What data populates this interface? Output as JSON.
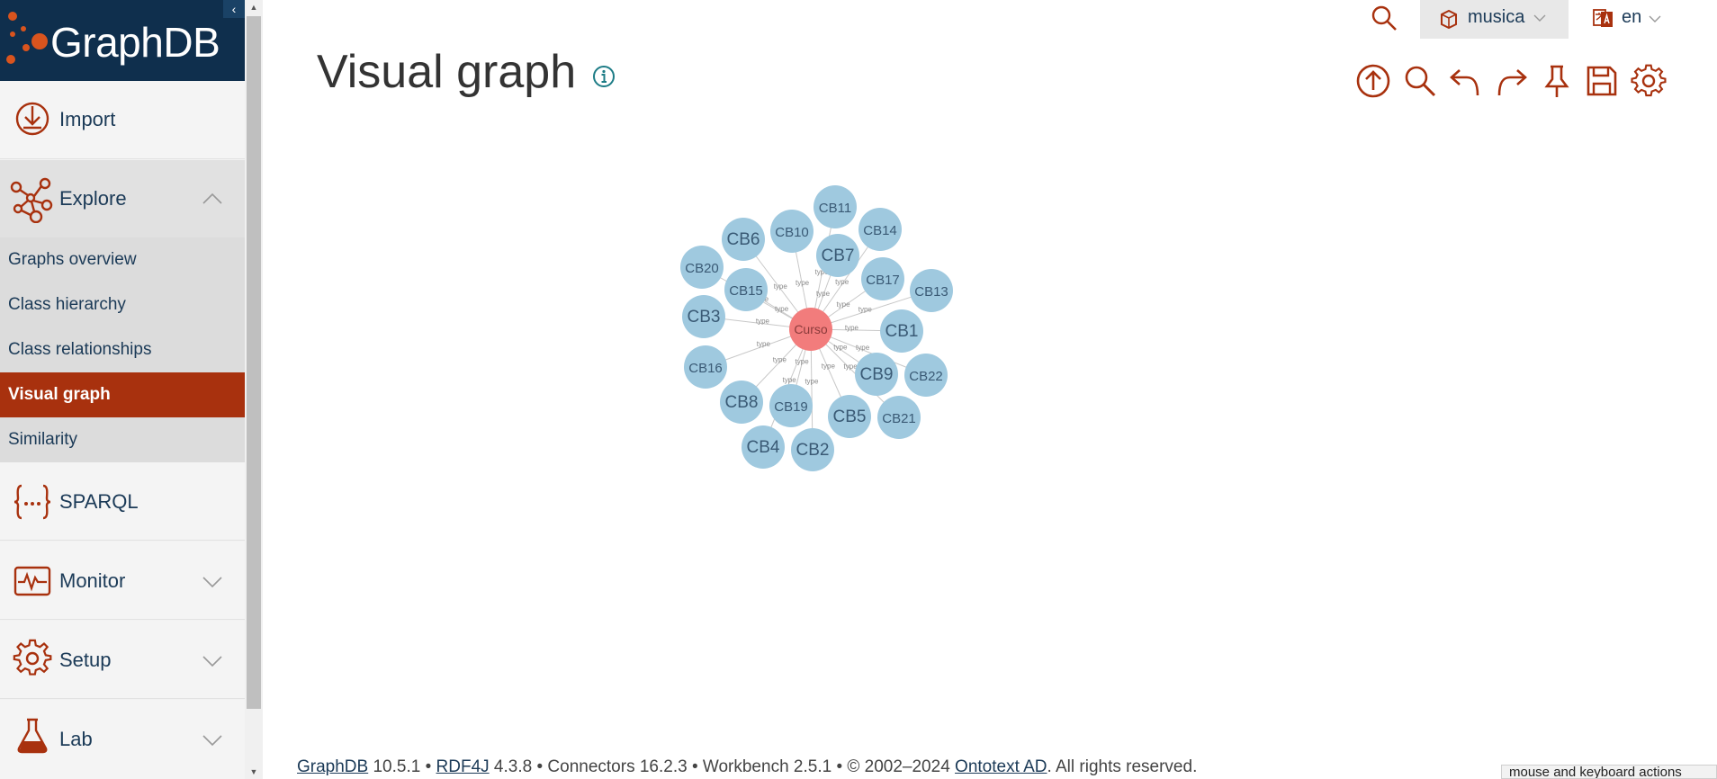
{
  "app": {
    "name": "GraphDB"
  },
  "sidebar": {
    "collapse_glyph": "‹",
    "import_label": "Import",
    "explore_label": "Explore",
    "explore_submenu": [
      {
        "label": "Graphs overview"
      },
      {
        "label": "Class hierarchy"
      },
      {
        "label": "Class relationships"
      },
      {
        "label": "Visual graph",
        "active": true
      },
      {
        "label": "Similarity"
      }
    ],
    "sparql_label": "SPARQL",
    "monitor_label": "Monitor",
    "setup_label": "Setup",
    "lab_label": "Lab"
  },
  "topbar": {
    "repository": "musica",
    "language": "en"
  },
  "page": {
    "title": "Visual graph"
  },
  "toolbar": {
    "icons": [
      "upload-icon",
      "search-icon",
      "undo-icon",
      "redo-icon",
      "pin-icon",
      "save-icon",
      "settings-icon"
    ]
  },
  "graph": {
    "center": {
      "label": "Curso",
      "color": "#f27c7c"
    },
    "node_color": "#9fc9df",
    "edge_label": "type",
    "nodes": [
      "CB11",
      "CB14",
      "CB10",
      "CB6",
      "CB7",
      "CB20",
      "CB17",
      "CB13",
      "CB15",
      "CB3",
      "CB1",
      "CB16",
      "CB9",
      "CB22",
      "CB8",
      "CB19",
      "CB5",
      "CB21",
      "CB4",
      "CB2"
    ]
  },
  "footer": {
    "graphdb_link": "GraphDB",
    "graphdb_version": " 10.5.1 • ",
    "rdf4j_link": "RDF4J",
    "rest": " 4.3.8 • Connectors 16.2.3 • Workbench 2.5.1 • © 2002–2024 ",
    "ontotext_link": "Ontotext AD",
    "tail": ". All rights reserved."
  },
  "keyboard_hint": "mouse and keyboard actions",
  "colors": {
    "accent": "#a8310e",
    "sidebar_header": "#0f2f4d",
    "text_dark": "#1b3a57"
  }
}
